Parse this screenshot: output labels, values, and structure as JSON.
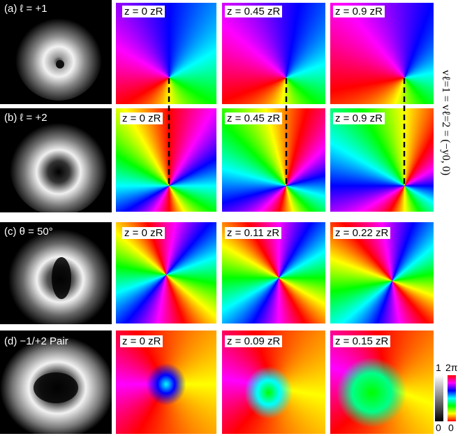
{
  "rows": [
    {
      "label": "(a) ℓ = +1",
      "panels": [
        "z = 0  zR",
        "z = 0.45 zR",
        "z = 0.9 zR"
      ],
      "intensity_shape": "single-ring-small-core",
      "phase_shape": "charge-1-vortex"
    },
    {
      "label": "(b) ℓ = +2",
      "panels": [
        "z = 0  zR",
        "z = 0.45 zR",
        "z = 0.9 zR"
      ],
      "intensity_shape": "single-ring-large-core",
      "phase_shape": "charge-2-vortex"
    },
    {
      "label": "(c) θ = 50°",
      "panels": [
        "z = 0  zR",
        "z = 0.11 zR",
        "z = 0.22 zR"
      ],
      "intensity_shape": "split-ring",
      "phase_shape": "splitting-vortex"
    },
    {
      "label": "(d) −1/+2 Pair",
      "panels": [
        "z = 0  zR",
        "z = 0.09 zR",
        "z = 0.15 zR"
      ],
      "intensity_shape": "donut-two-cores",
      "phase_shape": "vortex-pair"
    }
  ],
  "side_equation": "vℓ=1 = vℓ=2 = (−y0, 0)",
  "colorbars": {
    "intensity": {
      "max_label": "1",
      "min_label": "0"
    },
    "phase": {
      "max_label": "2π",
      "min_label": "0"
    }
  },
  "colors": {
    "hue_scale": [
      "#ff0000",
      "#ffff00",
      "#00ff00",
      "#00ffff",
      "#0000ff",
      "#ff00ff",
      "#ff0000"
    ],
    "dashed_line": "#000000"
  }
}
